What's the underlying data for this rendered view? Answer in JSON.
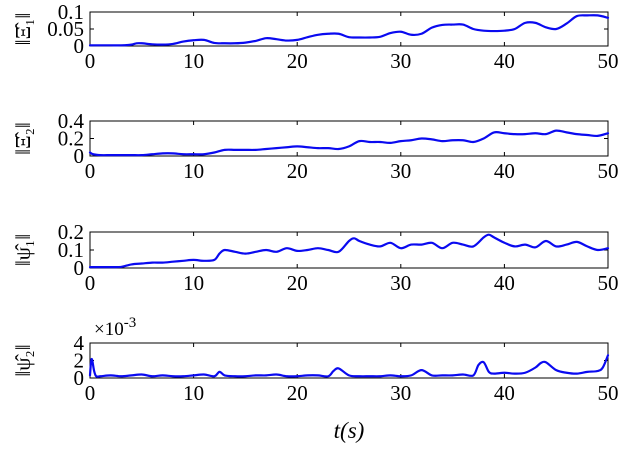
{
  "colors": {
    "series": "#0a0af0",
    "axis": "#000000"
  },
  "chart_data": [
    {
      "type": "line",
      "ylabel": "‖Ξ̂₁‖",
      "xlim": [
        0,
        50
      ],
      "ylim": [
        0,
        0.1
      ],
      "xticks": [
        0,
        10,
        20,
        30,
        40,
        50
      ],
      "xtick_labels": [
        "0",
        "10",
        "20",
        "30",
        "40",
        "50"
      ],
      "yticks": [
        0,
        0.05,
        0.1
      ],
      "ytick_labels": [
        "0",
        "0.05",
        "0.1"
      ],
      "exponent_label": "",
      "series": [
        {
          "x": [
            0,
            1,
            2,
            3,
            4,
            4.5,
            5,
            6,
            7,
            8,
            9,
            10,
            11,
            12,
            13,
            14,
            15,
            16,
            17,
            18,
            19,
            20,
            21,
            22,
            23,
            24,
            25,
            26,
            27,
            28,
            29,
            30,
            31,
            32,
            33,
            34,
            35,
            36,
            37,
            38,
            39,
            40,
            41,
            42,
            43,
            44,
            45,
            46,
            47,
            48,
            49,
            50
          ],
          "y": [
            0.002,
            0.002,
            0.002,
            0.002,
            0.004,
            0.008,
            0.008,
            0.005,
            0.004,
            0.006,
            0.013,
            0.017,
            0.018,
            0.009,
            0.008,
            0.008,
            0.01,
            0.015,
            0.023,
            0.02,
            0.016,
            0.018,
            0.026,
            0.033,
            0.036,
            0.036,
            0.026,
            0.025,
            0.025,
            0.027,
            0.038,
            0.042,
            0.033,
            0.036,
            0.054,
            0.062,
            0.063,
            0.063,
            0.05,
            0.045,
            0.044,
            0.045,
            0.05,
            0.068,
            0.068,
            0.055,
            0.05,
            0.066,
            0.088,
            0.09,
            0.09,
            0.083
          ]
        }
      ]
    },
    {
      "type": "line",
      "ylabel": "‖Ξ̂₂‖",
      "xlim": [
        0,
        50
      ],
      "ylim": [
        0,
        0.4
      ],
      "xticks": [
        0,
        10,
        20,
        30,
        40,
        50
      ],
      "xtick_labels": [
        "0",
        "10",
        "20",
        "30",
        "40",
        "50"
      ],
      "yticks": [
        0,
        0.2,
        0.4
      ],
      "ytick_labels": [
        "0",
        "0.2",
        "0.4"
      ],
      "exponent_label": "",
      "series": [
        {
          "x": [
            0,
            0.3,
            1,
            2,
            3,
            4,
            5,
            6,
            7,
            8,
            9,
            10,
            11,
            12,
            13,
            14,
            15,
            16,
            17,
            18,
            19,
            20,
            21,
            22,
            23,
            24,
            25,
            26,
            27,
            28,
            29,
            30,
            31,
            32,
            33,
            34,
            35,
            36,
            37,
            38,
            39,
            40,
            41,
            42,
            43,
            44,
            45,
            46,
            47,
            48,
            49,
            50
          ],
          "y": [
            0.04,
            0.02,
            0.01,
            0.01,
            0.01,
            0.01,
            0.01,
            0.02,
            0.03,
            0.03,
            0.02,
            0.02,
            0.02,
            0.04,
            0.07,
            0.07,
            0.07,
            0.07,
            0.08,
            0.09,
            0.1,
            0.11,
            0.1,
            0.09,
            0.09,
            0.08,
            0.11,
            0.17,
            0.16,
            0.16,
            0.15,
            0.17,
            0.18,
            0.2,
            0.19,
            0.17,
            0.18,
            0.18,
            0.16,
            0.2,
            0.27,
            0.26,
            0.25,
            0.25,
            0.26,
            0.25,
            0.29,
            0.27,
            0.25,
            0.24,
            0.23,
            0.26
          ]
        }
      ]
    },
    {
      "type": "line",
      "ylabel": "‖ψ̂₁‖",
      "xlim": [
        0,
        50
      ],
      "ylim": [
        0,
        0.2
      ],
      "xticks": [
        0,
        10,
        20,
        30,
        40,
        50
      ],
      "xtick_labels": [
        "0",
        "10",
        "20",
        "30",
        "40",
        "50"
      ],
      "yticks": [
        0,
        0.1,
        0.2
      ],
      "ytick_labels": [
        "0",
        "0.1",
        "0.2"
      ],
      "exponent_label": "",
      "series": [
        {
          "x": [
            0,
            1,
            2,
            3,
            4,
            5,
            6,
            7,
            8,
            9,
            10,
            11,
            12,
            12.5,
            13,
            14,
            15,
            16,
            17,
            18,
            19,
            20,
            21,
            22,
            23,
            24,
            25,
            25.5,
            26,
            27,
            28,
            29,
            30,
            31,
            32,
            33,
            34,
            35,
            36,
            37,
            38,
            38.5,
            39,
            40,
            41,
            42,
            43,
            44,
            45,
            46,
            47,
            48,
            49,
            50
          ],
          "y": [
            0.005,
            0.005,
            0.005,
            0.006,
            0.02,
            0.025,
            0.03,
            0.03,
            0.035,
            0.04,
            0.045,
            0.04,
            0.045,
            0.08,
            0.1,
            0.09,
            0.08,
            0.09,
            0.1,
            0.09,
            0.11,
            0.095,
            0.1,
            0.11,
            0.1,
            0.09,
            0.15,
            0.165,
            0.15,
            0.13,
            0.12,
            0.14,
            0.11,
            0.13,
            0.13,
            0.14,
            0.11,
            0.14,
            0.13,
            0.12,
            0.17,
            0.185,
            0.17,
            0.14,
            0.12,
            0.13,
            0.115,
            0.15,
            0.12,
            0.13,
            0.145,
            0.12,
            0.1,
            0.11
          ]
        }
      ]
    },
    {
      "type": "line",
      "ylabel": "‖ψ̂₂‖",
      "xlim": [
        0,
        50
      ],
      "ylim": [
        0,
        4
      ],
      "xticks": [
        0,
        10,
        20,
        30,
        40,
        50
      ],
      "xtick_labels": [
        "0",
        "10",
        "20",
        "30",
        "40",
        "50"
      ],
      "yticks": [
        0,
        2,
        4
      ],
      "ytick_labels": [
        "0",
        "2",
        "4"
      ],
      "exponent_label": "×10",
      "exponent_power": "-3",
      "xlabel": "t(s)",
      "series": [
        {
          "x": [
            0,
            0.1,
            0.2,
            0.4,
            0.6,
            1,
            2,
            3,
            4,
            5,
            6,
            7,
            8,
            9,
            10,
            11,
            12,
            12.5,
            13,
            14,
            15,
            16,
            17,
            18,
            19,
            20,
            21,
            22,
            23,
            23.5,
            24,
            25,
            26,
            27,
            28,
            29,
            30,
            31,
            32,
            33,
            34,
            35,
            36,
            37,
            37.5,
            38,
            38.5,
            39,
            40,
            41,
            42,
            43,
            43.5,
            44,
            45,
            46,
            47,
            48,
            49,
            49.5,
            50
          ],
          "y": [
            0.3,
            1.8,
            2.1,
            0.8,
            0.2,
            0.2,
            0.3,
            0.2,
            0.3,
            0.4,
            0.2,
            0.3,
            0.2,
            0.2,
            0.3,
            0.4,
            0.2,
            0.7,
            0.3,
            0.2,
            0.2,
            0.3,
            0.3,
            0.4,
            0.2,
            0.2,
            0.3,
            0.3,
            0.2,
            0.8,
            1.1,
            0.3,
            0.2,
            0.2,
            0.2,
            0.3,
            0.2,
            0.3,
            0.9,
            0.3,
            0.3,
            0.3,
            0.4,
            0.3,
            1.5,
            1.8,
            0.7,
            0.5,
            0.6,
            0.5,
            0.6,
            1.2,
            1.7,
            1.8,
            0.9,
            0.6,
            0.5,
            0.7,
            0.8,
            1.2,
            2.6
          ]
        }
      ]
    }
  ]
}
